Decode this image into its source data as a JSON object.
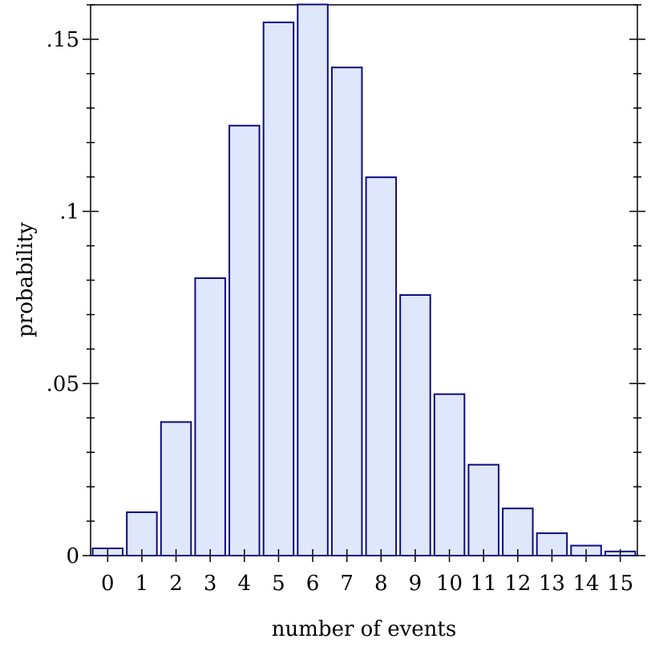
{
  "chart_data": {
    "type": "bar",
    "categories": [
      "0",
      "1",
      "2",
      "3",
      "4",
      "5",
      "6",
      "7",
      "8",
      "9",
      "10",
      "11",
      "12",
      "13",
      "14",
      "15"
    ],
    "values": [
      0.0021,
      0.0126,
      0.0388,
      0.0806,
      0.1249,
      0.1549,
      0.1601,
      0.1418,
      0.1099,
      0.0757,
      0.0469,
      0.0264,
      0.0137,
      0.0065,
      0.0029,
      0.0012
    ],
    "title": "",
    "xlabel": "number of events",
    "ylabel": "probability",
    "ylim": [
      0,
      0.16
    ],
    "y_ticks": [
      {
        "value": 0,
        "label": "0"
      },
      {
        "value": 0.05,
        "label": ".05"
      },
      {
        "value": 0.1,
        "label": ".1"
      },
      {
        "value": 0.15,
        "label": ".15"
      }
    ],
    "y_minor_step": 0.01,
    "grid": false,
    "colors": {
      "bar_fill": "#e0e6fb",
      "bar_stroke": "#0b0b80"
    }
  }
}
